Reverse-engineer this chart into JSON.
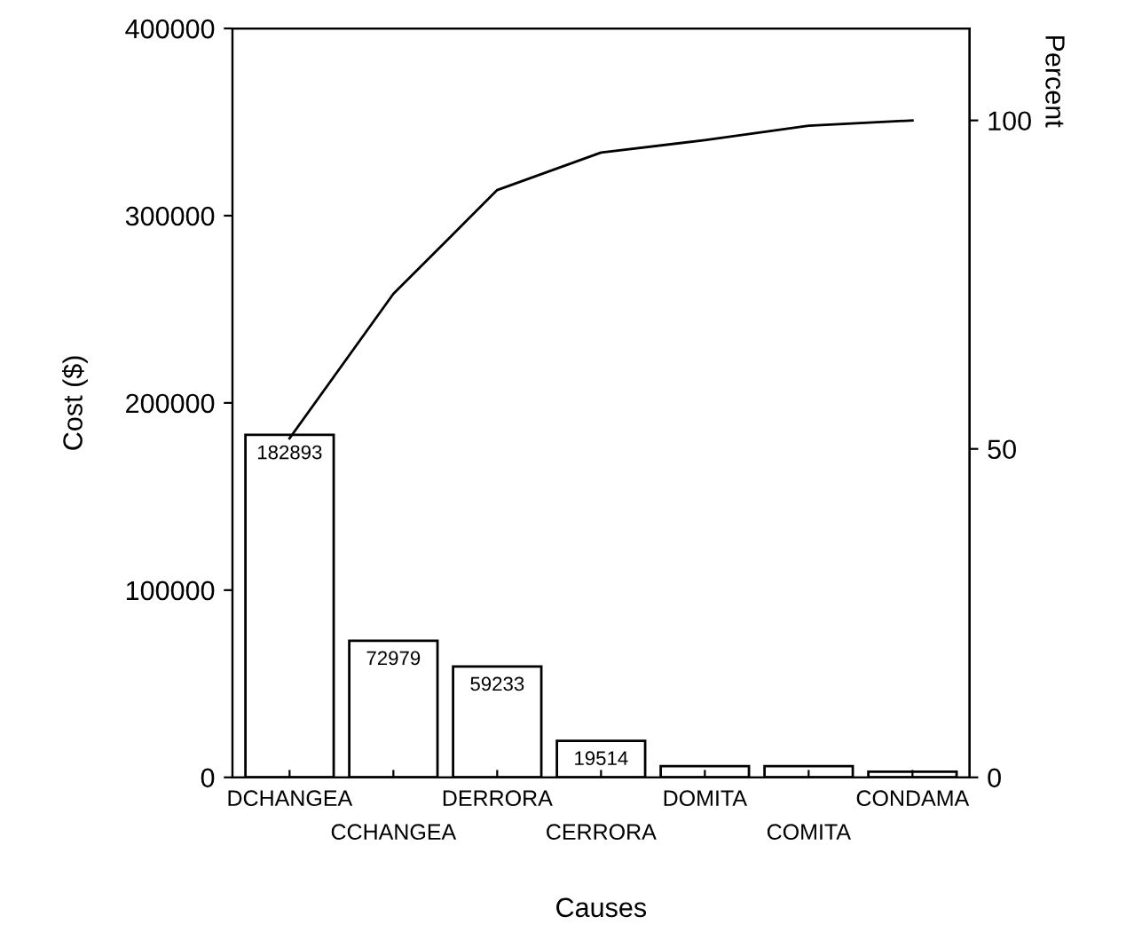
{
  "chart_data": {
    "type": "bar",
    "xlabel": "Causes",
    "ylabel": "Cost ($)",
    "y2label": "Percent",
    "categories": [
      "DCHANGEA",
      "CCHANGEA",
      "DERRORA",
      "CERRORA",
      "DOMITA",
      "COMITA",
      "CONDAMA"
    ],
    "series": [
      {
        "color": "#ffffff",
        "values": [
          182893,
          72979,
          59233,
          19514,
          6000,
          6000,
          3000
        ],
        "value_labels": [
          "182893",
          "72979",
          "59233",
          "19514",
          null,
          null,
          null
        ]
      },
      {
        "type": "line",
        "axis": "y2",
        "color": "#000000",
        "values": [
          51.6,
          73.6,
          89.4,
          95.1,
          97,
          99.2,
          100
        ]
      }
    ],
    "ylim": [
      0,
      400000
    ],
    "yticks": [
      0,
      100000,
      200000,
      300000,
      400000
    ],
    "y2lim": [
      0,
      114
    ],
    "y2ticks": [
      0,
      50,
      100
    ],
    "grid": false,
    "marker": "none",
    "line_style": "solid"
  }
}
